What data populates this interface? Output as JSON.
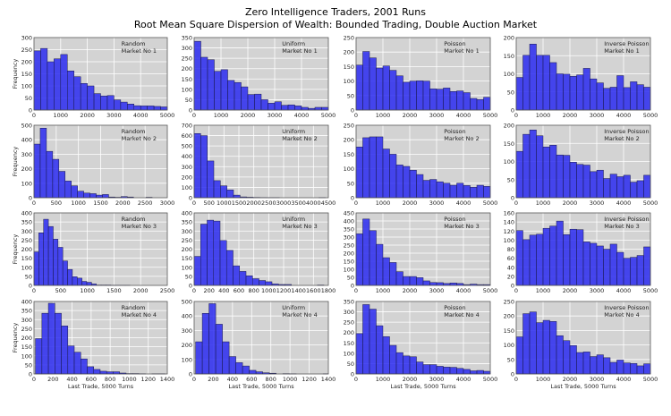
{
  "title": "Zero Intelligence Traders, 2001 Runs",
  "subtitle": "Root Mean Square Dispersion of Wealth:  Bounded Trading, Double Auction Market",
  "colors": {
    "bar": "#2a2af0",
    "edge": "#1a1a4a",
    "plot_bg": "#d3d3d3",
    "grid": "#ffffff"
  },
  "chart_data": [
    {
      "type": "bar",
      "row": 0,
      "col": 0,
      "annotation": [
        "Random",
        "Market No 1"
      ],
      "ylabel": "Frequency",
      "xlabel": "",
      "xlim": [
        0,
        5000
      ],
      "ylim": [
        0,
        300
      ],
      "xticks": [
        0,
        1000,
        2000,
        3000,
        4000,
        5000
      ],
      "yticks": [
        0,
        50,
        100,
        150,
        200,
        250,
        300
      ],
      "bin_start": 0,
      "bin_width": 250,
      "values": [
        245,
        255,
        200,
        212,
        230,
        162,
        138,
        110,
        100,
        68,
        58,
        60,
        42,
        33,
        25,
        18,
        17,
        17,
        15,
        13
      ]
    },
    {
      "type": "bar",
      "row": 0,
      "col": 1,
      "annotation": [
        "Uniform",
        "Market No 1"
      ],
      "ylabel": "",
      "xlabel": "",
      "xlim": [
        0,
        5000
      ],
      "ylim": [
        0,
        350
      ],
      "xticks": [
        0,
        1000,
        2000,
        3000,
        4000,
        5000
      ],
      "yticks": [
        0,
        50,
        100,
        150,
        200,
        250,
        300,
        350
      ],
      "bin_start": 0,
      "bin_width": 250,
      "values": [
        332,
        255,
        243,
        187,
        195,
        143,
        133,
        112,
        75,
        77,
        50,
        33,
        40,
        23,
        25,
        20,
        13,
        8,
        13,
        13
      ]
    },
    {
      "type": "bar",
      "row": 0,
      "col": 2,
      "annotation": [
        "Poisson",
        "Market No 1"
      ],
      "ylabel": "",
      "xlabel": "",
      "xlim": [
        0,
        5000
      ],
      "ylim": [
        0,
        250
      ],
      "xticks": [
        0,
        1000,
        2000,
        3000,
        4000,
        5000
      ],
      "yticks": [
        0,
        50,
        100,
        150,
        200,
        250
      ],
      "bin_start": 0,
      "bin_width": 250,
      "values": [
        155,
        202,
        180,
        145,
        152,
        137,
        118,
        96,
        100,
        101,
        100,
        73,
        72,
        76,
        64,
        66,
        60,
        40,
        36,
        44
      ]
    },
    {
      "type": "bar",
      "row": 0,
      "col": 3,
      "annotation": [
        "Inverse Poisson",
        "Market No 1"
      ],
      "ylabel": "",
      "xlabel": "",
      "xlim": [
        0,
        5000
      ],
      "ylim": [
        0,
        200
      ],
      "xticks": [
        0,
        1000,
        2000,
        3000,
        4000,
        5000
      ],
      "yticks": [
        0,
        50,
        100,
        150,
        200
      ],
      "bin_start": 0,
      "bin_width": 250,
      "values": [
        90,
        151,
        182,
        151,
        151,
        131,
        100,
        99,
        93,
        97,
        115,
        86,
        75,
        60,
        63,
        95,
        62,
        78,
        70,
        63
      ]
    },
    {
      "type": "bar",
      "row": 1,
      "col": 0,
      "annotation": [
        "Random",
        "Market No 2"
      ],
      "ylabel": "Frequency",
      "xlabel": "",
      "xlim": [
        0,
        3000
      ],
      "ylim": [
        0,
        500
      ],
      "xticks": [
        0,
        500,
        1000,
        1500,
        2000,
        2500,
        3000
      ],
      "yticks": [
        0,
        100,
        200,
        300,
        400,
        500
      ],
      "bin_start": 0,
      "bin_width": 140,
      "values": [
        370,
        480,
        320,
        265,
        182,
        115,
        82,
        45,
        32,
        28,
        18,
        22,
        5,
        3,
        8,
        5,
        0,
        0,
        3,
        0
      ]
    },
    {
      "type": "bar",
      "row": 1,
      "col": 1,
      "annotation": [
        "Uniform",
        "Market No 2"
      ],
      "ylabel": "",
      "xlabel": "",
      "xlim": [
        0,
        4500
      ],
      "ylim": [
        0,
        700
      ],
      "xticks": [
        0,
        500,
        1000,
        1500,
        2000,
        2500,
        3000,
        3500,
        4000,
        4500
      ],
      "yticks": [
        0,
        100,
        200,
        300,
        400,
        500,
        600,
        700
      ],
      "bin_start": 0,
      "bin_width": 220,
      "values": [
        620,
        600,
        355,
        165,
        115,
        75,
        25,
        8,
        5,
        3,
        2,
        1,
        1,
        0,
        0,
        0,
        0,
        0,
        0,
        1
      ]
    },
    {
      "type": "bar",
      "row": 1,
      "col": 2,
      "annotation": [
        "Poisson",
        "Market No 2"
      ],
      "ylabel": "",
      "xlabel": "",
      "xlim": [
        0,
        5000
      ],
      "ylim": [
        0,
        250
      ],
      "xticks": [
        0,
        1000,
        2000,
        3000,
        4000,
        5000
      ],
      "yticks": [
        0,
        50,
        100,
        150,
        200,
        250
      ],
      "bin_start": 0,
      "bin_width": 250,
      "values": [
        175,
        207,
        210,
        210,
        168,
        150,
        113,
        108,
        95,
        80,
        60,
        63,
        55,
        50,
        43,
        50,
        42,
        36,
        43,
        39
      ]
    },
    {
      "type": "bar",
      "row": 1,
      "col": 3,
      "annotation": [
        "Inverse Poisson",
        "Market No 2"
      ],
      "ylabel": "",
      "xlabel": "",
      "xlim": [
        0,
        5000
      ],
      "ylim": [
        0,
        200
      ],
      "xticks": [
        0,
        1000,
        2000,
        3000,
        4000,
        5000
      ],
      "yticks": [
        0,
        50,
        100,
        150,
        200
      ],
      "bin_start": 0,
      "bin_width": 250,
      "values": [
        128,
        175,
        187,
        171,
        140,
        145,
        118,
        117,
        98,
        92,
        90,
        72,
        76,
        53,
        65,
        58,
        62,
        43,
        47,
        62
      ]
    },
    {
      "type": "bar",
      "row": 2,
      "col": 0,
      "annotation": [
        "Random",
        "Market No 3"
      ],
      "ylabel": "Frequency",
      "xlabel": "",
      "xlim": [
        0,
        2500
      ],
      "ylim": [
        0,
        400
      ],
      "xticks": [
        0,
        500,
        1000,
        1500,
        2000,
        2500
      ],
      "yticks": [
        0,
        50,
        100,
        150,
        200,
        250,
        300,
        350,
        400
      ],
      "bin_start": 0,
      "bin_width": 90,
      "values": [
        185,
        290,
        365,
        325,
        255,
        210,
        135,
        88,
        48,
        40,
        22,
        17,
        8,
        2,
        2,
        2,
        1,
        1,
        1,
        1
      ]
    },
    {
      "type": "bar",
      "row": 2,
      "col": 1,
      "annotation": [
        "Uniform",
        "Market No 3"
      ],
      "ylabel": "",
      "xlabel": "",
      "xlim": [
        0,
        1800
      ],
      "ylim": [
        0,
        400
      ],
      "xticks": [
        0,
        200,
        400,
        600,
        800,
        1000,
        1200,
        1400,
        1600,
        1800
      ],
      "yticks": [
        0,
        50,
        100,
        150,
        200,
        250,
        300,
        350,
        400
      ],
      "bin_start": 0,
      "bin_width": 87,
      "values": [
        160,
        338,
        360,
        355,
        248,
        193,
        108,
        77,
        53,
        37,
        27,
        20,
        8,
        5,
        5,
        0,
        0,
        0,
        0,
        2
      ]
    },
    {
      "type": "bar",
      "row": 2,
      "col": 2,
      "annotation": [
        "Poisson",
        "Market No 3"
      ],
      "ylabel": "",
      "xlabel": "",
      "xlim": [
        0,
        5000
      ],
      "ylim": [
        0,
        450
      ],
      "xticks": [
        0,
        1000,
        2000,
        3000,
        4000,
        5000
      ],
      "yticks": [
        0,
        50,
        100,
        150,
        200,
        250,
        300,
        350,
        400,
        450
      ],
      "bin_start": 0,
      "bin_width": 250,
      "values": [
        320,
        412,
        340,
        255,
        172,
        142,
        85,
        55,
        55,
        48,
        28,
        18,
        17,
        12,
        15,
        12,
        5,
        8,
        5,
        5
      ]
    },
    {
      "type": "bar",
      "row": 2,
      "col": 3,
      "annotation": [
        "Inverse Poisson",
        "Market No 3"
      ],
      "ylabel": "",
      "xlabel": "",
      "xlim": [
        0,
        5000
      ],
      "ylim": [
        0,
        160
      ],
      "xticks": [
        0,
        1000,
        2000,
        3000,
        4000,
        5000
      ],
      "yticks": [
        0,
        20,
        40,
        60,
        80,
        100,
        120,
        140,
        160
      ],
      "bin_start": 0,
      "bin_width": 250,
      "values": [
        121,
        101,
        111,
        113,
        126,
        131,
        142,
        112,
        124,
        123,
        96,
        93,
        87,
        80,
        91,
        73,
        60,
        62,
        66,
        85
      ]
    },
    {
      "type": "bar",
      "row": 3,
      "col": 0,
      "annotation": [
        "Random",
        "Market No 4"
      ],
      "ylabel": "Frequency",
      "xlabel": "Last Trade, 5000 Turns",
      "xlim": [
        0,
        1400
      ],
      "ylim": [
        0,
        400
      ],
      "xticks": [
        0,
        200,
        400,
        600,
        800,
        1000,
        1200,
        1400
      ],
      "yticks": [
        0,
        50,
        100,
        150,
        200,
        250,
        300,
        350,
        400
      ],
      "bin_start": 15,
      "bin_width": 68,
      "values": [
        195,
        335,
        390,
        335,
        265,
        155,
        120,
        83,
        40,
        25,
        15,
        12,
        12,
        5,
        2,
        2,
        1,
        0,
        1,
        1
      ]
    },
    {
      "type": "bar",
      "row": 3,
      "col": 1,
      "annotation": [
        "Uniform",
        "Market No 4"
      ],
      "ylabel": "",
      "xlabel": "Last Trade, 5000 Turns",
      "xlim": [
        0,
        1400
      ],
      "ylim": [
        0,
        500
      ],
      "xticks": [
        0,
        200,
        400,
        600,
        800,
        1000,
        1200,
        1400
      ],
      "yticks": [
        0,
        100,
        200,
        300,
        400,
        500
      ],
      "bin_start": 15,
      "bin_width": 70,
      "values": [
        222,
        418,
        485,
        343,
        222,
        120,
        78,
        55,
        25,
        15,
        8,
        5,
        0,
        2,
        1,
        0,
        0,
        0,
        0,
        1
      ]
    },
    {
      "type": "bar",
      "row": 3,
      "col": 2,
      "annotation": [
        "Poisson",
        "Market No 4"
      ],
      "ylabel": "",
      "xlabel": "Last Trade, 5000 Turns",
      "xlim": [
        0,
        5000
      ],
      "ylim": [
        0,
        350
      ],
      "xticks": [
        0,
        1000,
        2000,
        3000,
        4000,
        5000
      ],
      "yticks": [
        0,
        50,
        100,
        150,
        200,
        250,
        300,
        350
      ],
      "bin_start": 0,
      "bin_width": 250,
      "values": [
        195,
        335,
        313,
        233,
        180,
        138,
        103,
        87,
        83,
        58,
        45,
        45,
        37,
        33,
        32,
        27,
        22,
        15,
        17,
        13
      ]
    },
    {
      "type": "bar",
      "row": 3,
      "col": 3,
      "annotation": [
        "Inverse Poisson",
        "Market No 4"
      ],
      "ylabel": "",
      "xlabel": "Last Trade, 5000 Turns",
      "xlim": [
        0,
        5000
      ],
      "ylim": [
        0,
        250
      ],
      "xticks": [
        0,
        1000,
        2000,
        3000,
        4000,
        5000
      ],
      "yticks": [
        0,
        50,
        100,
        150,
        200,
        250
      ],
      "bin_start": 0,
      "bin_width": 250,
      "values": [
        128,
        208,
        214,
        177,
        185,
        181,
        132,
        115,
        98,
        74,
        76,
        60,
        66,
        56,
        40,
        48,
        38,
        36,
        28,
        35
      ]
    }
  ]
}
